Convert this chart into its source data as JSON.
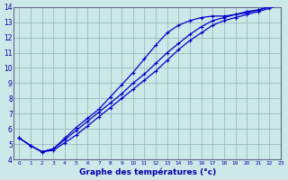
{
  "xlabel": "Graphe des températures (°c)",
  "x": [
    0,
    1,
    2,
    3,
    4,
    5,
    6,
    7,
    8,
    9,
    10,
    11,
    12,
    13,
    14,
    15,
    16,
    17,
    18,
    19,
    20,
    21,
    22,
    23
  ],
  "line1": [
    5.4,
    4.9,
    4.5,
    4.6,
    5.1,
    5.6,
    6.2,
    6.8,
    7.4,
    8.0,
    8.6,
    9.2,
    9.8,
    10.5,
    11.2,
    11.8,
    12.3,
    12.8,
    13.1,
    13.3,
    13.5,
    13.7,
    13.9,
    14.2
  ],
  "line2": [
    5.4,
    4.9,
    4.5,
    4.7,
    5.3,
    5.9,
    6.5,
    7.1,
    7.7,
    8.3,
    9.0,
    9.6,
    10.3,
    11.0,
    11.6,
    12.2,
    12.7,
    13.1,
    13.3,
    13.5,
    13.6,
    13.8,
    14.0,
    14.2
  ],
  "line3": [
    5.4,
    4.9,
    4.5,
    4.7,
    5.4,
    6.1,
    6.7,
    7.3,
    8.1,
    8.9,
    9.7,
    10.6,
    11.5,
    12.3,
    12.8,
    13.1,
    13.3,
    13.4,
    13.4,
    13.5,
    13.7,
    13.8,
    14.0,
    14.2
  ],
  "line_color": "#0000cc",
  "bg_color": "#cce8e8",
  "grid_color": "#99bbbb",
  "ylim": [
    4,
    14
  ],
  "xlim": [
    -0.5,
    23
  ],
  "yticks": [
    4,
    5,
    6,
    7,
    8,
    9,
    10,
    11,
    12,
    13,
    14
  ],
  "xticks": [
    0,
    1,
    2,
    3,
    4,
    5,
    6,
    7,
    8,
    9,
    10,
    11,
    12,
    13,
    14,
    15,
    16,
    17,
    18,
    19,
    20,
    21,
    22,
    23
  ]
}
